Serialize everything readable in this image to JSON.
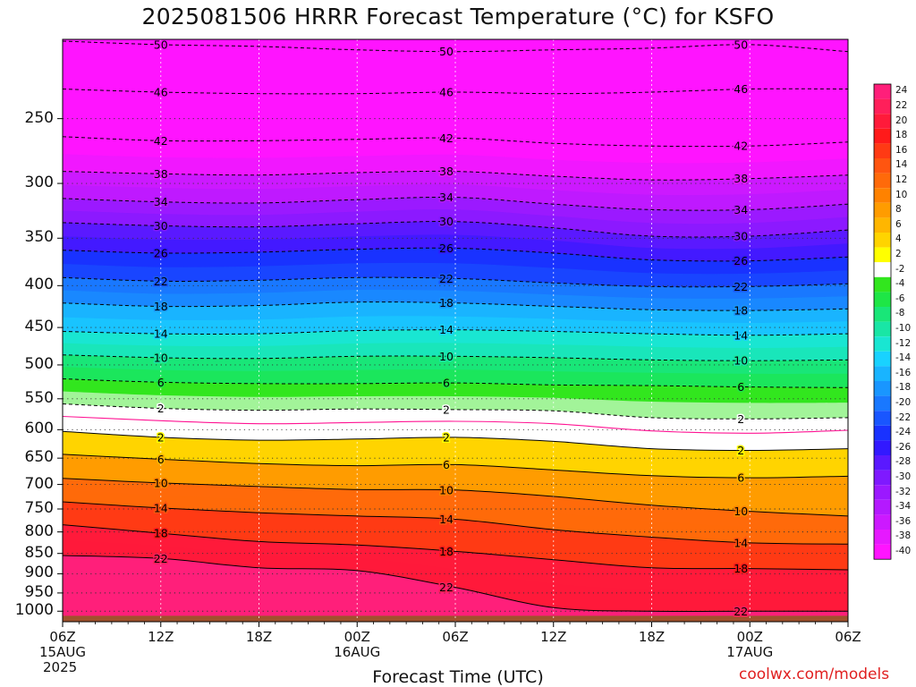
{
  "title": "2025081506 HRRR Forecast Temperature (°C) for KSFO",
  "x_axis_title": "Forecast Time (UTC)",
  "credit": "coolwx.com/models",
  "chart_data": {
    "type": "heatmap",
    "title": "2025081506 HRRR Forecast Temperature (°C) for KSFO",
    "xlabel": "Forecast Time (UTC)",
    "ylabel": "",
    "x_ticks": [
      {
        "label": "06Z",
        "sub": "15AUG",
        "sub2": "2025",
        "hour": 0
      },
      {
        "label": "12Z",
        "hour": 6
      },
      {
        "label": "18Z",
        "hour": 12
      },
      {
        "label": "00Z",
        "sub": "16AUG",
        "hour": 18
      },
      {
        "label": "06Z",
        "hour": 24
      },
      {
        "label": "12Z",
        "hour": 30
      },
      {
        "label": "18Z",
        "hour": 36
      },
      {
        "label": "00Z",
        "sub": "17AUG",
        "hour": 42
      },
      {
        "label": "06Z",
        "hour": 48
      }
    ],
    "y_ticks": [
      250,
      300,
      350,
      400,
      450,
      500,
      550,
      600,
      650,
      700,
      750,
      800,
      850,
      900,
      950,
      1000
    ],
    "y_range_hpa": [
      1030,
      200
    ],
    "x_range_hours": [
      0,
      48
    ],
    "hours": [
      0,
      6,
      12,
      18,
      24,
      30,
      36,
      42,
      48
    ],
    "contours": [
      {
        "value": -50,
        "label": "50",
        "pressure_hpa": [
          201,
          203,
          204,
          206,
          207,
          206,
          205,
          203,
          207
        ]
      },
      {
        "value": -46,
        "label": "46",
        "pressure_hpa": [
          230,
          232,
          233,
          233,
          232,
          233,
          232,
          230,
          230
        ]
      },
      {
        "value": -42,
        "label": "42",
        "pressure_hpa": [
          263,
          266,
          266,
          265,
          264,
          268,
          270,
          270,
          267
        ]
      },
      {
        "value": -38,
        "label": "38",
        "pressure_hpa": [
          290,
          292,
          293,
          291,
          290,
          294,
          297,
          296,
          293
        ]
      },
      {
        "value": -34,
        "label": "34",
        "pressure_hpa": [
          313,
          316,
          317,
          314,
          312,
          318,
          323,
          323,
          318
        ]
      },
      {
        "value": -30,
        "label": "30",
        "pressure_hpa": [
          335,
          338,
          339,
          336,
          334,
          340,
          348,
          348,
          342
        ]
      },
      {
        "value": -26,
        "label": "26",
        "pressure_hpa": [
          362,
          365,
          364,
          361,
          360,
          365,
          372,
          373,
          369
        ]
      },
      {
        "value": -22,
        "label": "22",
        "pressure_hpa": [
          391,
          395,
          394,
          391,
          392,
          397,
          401,
          401,
          398
        ]
      },
      {
        "value": -18,
        "label": "18",
        "pressure_hpa": [
          420,
          424,
          423,
          419,
          420,
          424,
          428,
          429,
          427
        ]
      },
      {
        "value": -14,
        "label": "14",
        "pressure_hpa": [
          455,
          458,
          458,
          454,
          453,
          455,
          458,
          460,
          458
        ]
      },
      {
        "value": -10,
        "label": "10",
        "pressure_hpa": [
          486,
          490,
          491,
          488,
          488,
          490,
          493,
          494,
          493
        ]
      },
      {
        "value": -6,
        "label": "6",
        "pressure_hpa": [
          520,
          525,
          527,
          527,
          526,
          529,
          530,
          532,
          533
        ]
      },
      {
        "value": -2,
        "label": "2",
        "pressure_hpa": [
          558,
          565,
          568,
          566,
          567,
          569,
          580,
          582,
          580
        ]
      },
      {
        "value": 0,
        "label": "",
        "pressure_hpa": [
          578,
          585,
          590,
          588,
          586,
          590,
          602,
          606,
          601
        ]
      },
      {
        "value": 2,
        "label": "2",
        "pressure_hpa": [
          603,
          613,
          618,
          616,
          613,
          620,
          633,
          636,
          633
        ]
      },
      {
        "value": 6,
        "label": "6",
        "pressure_hpa": [
          643,
          652,
          660,
          664,
          662,
          672,
          683,
          687,
          684
        ]
      },
      {
        "value": 10,
        "label": "10",
        "pressure_hpa": [
          688,
          697,
          704,
          710,
          711,
          724,
          742,
          755,
          765
        ]
      },
      {
        "value": 14,
        "label": "14",
        "pressure_hpa": [
          735,
          748,
          758,
          765,
          772,
          795,
          812,
          825,
          828
        ]
      },
      {
        "value": 18,
        "label": "18",
        "pressure_hpa": [
          784,
          803,
          822,
          830,
          845,
          865,
          885,
          887,
          890
        ]
      },
      {
        "value": 22,
        "label": "22",
        "pressure_hpa": [
          855,
          862,
          885,
          892,
          935,
          990,
          1000,
          1000,
          1000
        ]
      }
    ],
    "colorbar": {
      "labels": [
        "24",
        "22",
        "20",
        "18",
        "16",
        "14",
        "12",
        "10",
        "8",
        "6",
        "4",
        "2",
        "-2",
        "-4",
        "-6",
        "-8",
        "-10",
        "-12",
        "-14",
        "-16",
        "-18",
        "-20",
        "-22",
        "-24",
        "-26",
        "-28",
        "-30",
        "-32",
        "-34",
        "-36",
        "-38",
        "-40"
      ],
      "colors": [
        "#ff1f7a",
        "#ff1f5a",
        "#ff1a3a",
        "#ff1a1a",
        "#ff3a14",
        "#ff5510",
        "#ff6a0a",
        "#ff8200",
        "#ff9c00",
        "#ffb600",
        "#ffd400",
        "#ffff00",
        "#ffffff",
        "#32e61e",
        "#1ee646",
        "#19e678",
        "#19e6a5",
        "#19e6d2",
        "#19d2ff",
        "#19b4ff",
        "#1996ff",
        "#1978ff",
        "#1956ff",
        "#1932ff",
        "#3219ff",
        "#5a19ff",
        "#7f19ff",
        "#9b19ff",
        "#b419ff",
        "#cc19ff",
        "#e619ff",
        "#ff14ff"
      ]
    },
    "ground_color": "#a0522d",
    "freezing_line_color": "#ff1493"
  }
}
